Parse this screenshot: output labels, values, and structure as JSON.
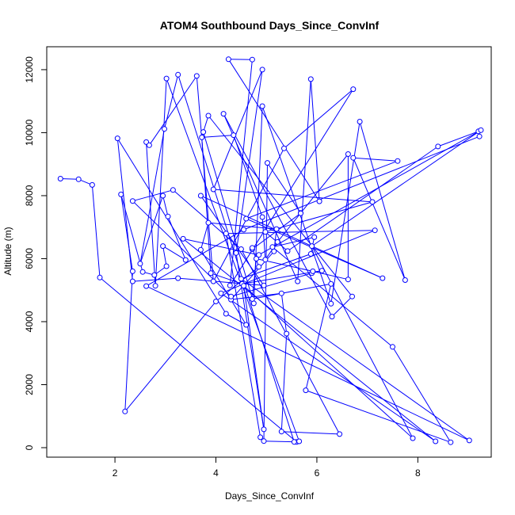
{
  "chart_data": {
    "type": "line",
    "title": "ATOM4 Southbound Days_Since_ConvInf",
    "xlabel": "Days_Since_ConvInf",
    "ylabel": "Altitude (m)",
    "xlim": [
      0.9,
      9.25
    ],
    "ylim": [
      0,
      12300
    ],
    "xticks": [
      2,
      4,
      6,
      8
    ],
    "yticks": [
      0,
      2000,
      4000,
      6000,
      8000,
      10000,
      12000
    ],
    "grid": false,
    "markers": "open-circle",
    "colors": {
      "series": "#0000ff",
      "axis": "#000000",
      "background": "#ffffff"
    },
    "series": [
      {
        "points": [
          [
            0.92,
            8540
          ],
          [
            1.28,
            8520
          ],
          [
            1.55,
            8340
          ],
          [
            1.7,
            5400
          ],
          [
            5.6,
            180
          ],
          [
            4.95,
            210
          ],
          [
            5.02,
            9040
          ],
          [
            5.68,
            7450
          ],
          [
            5.68,
            7440
          ],
          [
            4.72,
            6300
          ],
          [
            4.72,
            6340
          ],
          [
            4.85,
            5740
          ],
          [
            4.0,
            4640
          ],
          [
            2.2,
            1150
          ],
          [
            2.35,
            5600
          ],
          [
            2.12,
            8040
          ],
          [
            2.55,
            5580
          ],
          [
            2.78,
            5480
          ],
          [
            3.02,
            5760
          ],
          [
            2.95,
            6400
          ],
          [
            3.4,
            5960
          ],
          [
            3.05,
            7340
          ],
          [
            2.95,
            8000
          ],
          [
            2.5,
            5840
          ],
          [
            2.98,
            10120
          ],
          [
            3.25,
            11840
          ],
          [
            5.55,
            180
          ],
          [
            5.65,
            200
          ],
          [
            3.02,
            11720
          ],
          [
            2.8,
            5140
          ],
          [
            2.62,
            9700
          ],
          [
            2.68,
            9600
          ],
          [
            3.62,
            11800
          ],
          [
            3.95,
            5280
          ],
          [
            5.35,
            9500
          ],
          [
            6.72,
            11380
          ],
          [
            4.28,
            5150
          ],
          [
            4.72,
            12320
          ],
          [
            4.25,
            12330
          ],
          [
            6.05,
            7820
          ],
          [
            5.88,
            11700
          ],
          [
            5.62,
            5280
          ],
          [
            4.15,
            10600
          ],
          [
            6.3,
            4160
          ],
          [
            6.7,
            4800
          ],
          [
            3.85,
            10540
          ],
          [
            3.75,
            10020
          ],
          [
            4.75,
            4580
          ],
          [
            4.92,
            10840
          ],
          [
            6.28,
            4570
          ],
          [
            6.85,
            10350
          ],
          [
            7.75,
            5320
          ],
          [
            6.72,
            9200
          ],
          [
            7.6,
            9100
          ],
          [
            4.6,
            7270
          ],
          [
            7.3,
            5380
          ],
          [
            3.7,
            8000
          ],
          [
            4.95,
            5150
          ],
          [
            3.25,
            5380
          ],
          [
            2.35,
            5280
          ],
          [
            2.05,
            9820
          ],
          [
            4.2,
            4250
          ],
          [
            4.6,
            3900
          ],
          [
            3.7,
            6280
          ],
          [
            3.85,
            7140
          ],
          [
            5.2,
            6940
          ],
          [
            5.15,
            6230
          ],
          [
            4.3,
            4700
          ],
          [
            5.3,
            4900
          ],
          [
            5.4,
            3620
          ],
          [
            5.3,
            510
          ],
          [
            6.45,
            430
          ],
          [
            4.5,
            6300
          ],
          [
            3.15,
            8180
          ],
          [
            2.35,
            7830
          ],
          [
            4.3,
            4800
          ],
          [
            5.9,
            5540
          ],
          [
            6.1,
            5620
          ],
          [
            4.52,
            5200
          ],
          [
            3.9,
            5540
          ],
          [
            3.72,
            9850
          ],
          [
            4.35,
            9920
          ],
          [
            4.92,
            7320
          ],
          [
            4.98,
            5970
          ],
          [
            5.22,
            6530
          ],
          [
            6.62,
            9320
          ],
          [
            6.62,
            5340
          ],
          [
            5.92,
            5600
          ],
          [
            4.8,
            6000
          ],
          [
            4.72,
            4720
          ],
          [
            6.28,
            5200
          ],
          [
            5.78,
            1820
          ],
          [
            8.65,
            170
          ],
          [
            7.5,
            3200
          ],
          [
            5.12,
            6370
          ],
          [
            5.95,
            6680
          ],
          [
            5.88,
            6150
          ],
          [
            4.5,
            5360
          ],
          [
            9.02,
            230
          ],
          [
            2.62,
            5130
          ],
          [
            4.55,
            6920
          ],
          [
            9.22,
            9880
          ],
          [
            9.2,
            10040
          ],
          [
            8.4,
            9560
          ],
          [
            5.42,
            6240
          ],
          [
            4.98,
            6850
          ],
          [
            7.1,
            7800
          ],
          [
            3.95,
            8200
          ],
          [
            4.92,
            12000
          ],
          [
            4.4,
            6180
          ],
          [
            4.95,
            580
          ],
          [
            4.55,
            5140
          ],
          [
            7.9,
            300
          ],
          [
            5.9,
            6400
          ],
          [
            9.25,
            10080
          ],
          [
            4.85,
            6120
          ],
          [
            3.35,
            6630
          ],
          [
            8.35,
            200
          ],
          [
            4.1,
            4900
          ],
          [
            7.15,
            6900
          ],
          [
            4.2,
            6800
          ],
          [
            4.88,
            330
          ]
        ]
      }
    ]
  }
}
